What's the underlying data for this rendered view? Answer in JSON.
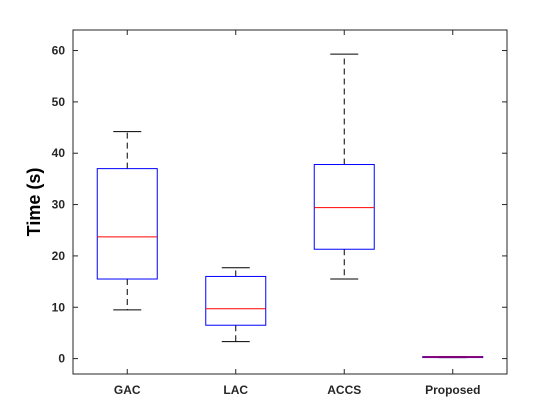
{
  "chart_data": {
    "type": "box",
    "title": "",
    "xlabel": "",
    "ylabel": "Time (s)",
    "ylim": [
      -3,
      64
    ],
    "yticks": [
      0,
      10,
      20,
      30,
      40,
      50,
      60
    ],
    "grid": false,
    "categories": [
      "GAC",
      "LAC",
      "ACCS",
      "Proposed"
    ],
    "boxes": [
      {
        "category": "GAC",
        "min": 9.5,
        "q1": 15.5,
        "median": 23.7,
        "q3": 37.0,
        "max": 44.2
      },
      {
        "category": "LAC",
        "min": 3.3,
        "q1": 6.5,
        "median": 9.7,
        "q3": 16.0,
        "max": 17.7
      },
      {
        "category": "ACCS",
        "min": 15.5,
        "q1": 21.3,
        "median": 29.4,
        "q3": 37.8,
        "max": 59.3
      },
      {
        "category": "Proposed",
        "min": 0.2,
        "q1": 0.2,
        "median": 0.3,
        "q3": 0.4,
        "max": 0.4
      }
    ],
    "colors": {
      "box": "#0000ff",
      "median": "#ff0000",
      "whisker": "#000000",
      "axis": "#262626"
    }
  }
}
